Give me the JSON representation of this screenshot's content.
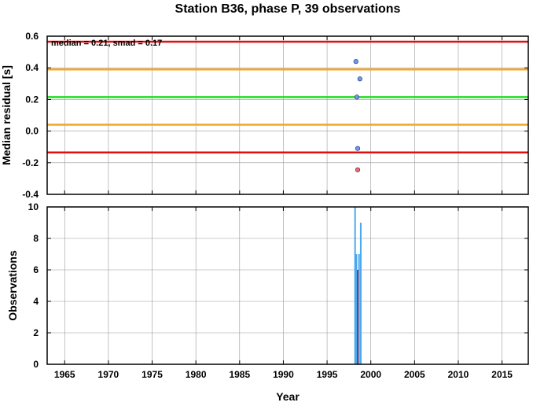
{
  "chart_data": [
    {
      "type": "scatter",
      "title": "Station B36, phase P, 39 observations",
      "annotation": "median = 0.21, smad = 0.17",
      "ylabel": "Median residual [s]",
      "xlim": [
        1963,
        2018
      ],
      "ylim": [
        -0.4,
        0.6
      ],
      "yticks": [
        -0.4,
        -0.2,
        0.0,
        0.2,
        0.4,
        0.6
      ],
      "ytick_labels": [
        "-0.4",
        "-0.2",
        "0.0",
        "0.2",
        "0.4",
        "0.6"
      ],
      "grid": true,
      "reference_lines": [
        {
          "value": 0.565,
          "color": "#e01010"
        },
        {
          "value": 0.39,
          "color": "#f5a623"
        },
        {
          "value": 0.215,
          "color": "#22dd22"
        },
        {
          "value": 0.04,
          "color": "#f5a623"
        },
        {
          "value": -0.135,
          "color": "#e01010"
        }
      ],
      "points": [
        {
          "x": 1998.3,
          "y": 0.44,
          "color": "#6a9be8"
        },
        {
          "x": 1998.75,
          "y": 0.33,
          "color": "#6a9be8"
        },
        {
          "x": 1998.4,
          "y": 0.215,
          "color": "#6a9be8"
        },
        {
          "x": 1998.5,
          "y": -0.11,
          "color": "#6a9be8"
        },
        {
          "x": 1998.5,
          "y": -0.245,
          "color": "#ef6b6b"
        }
      ]
    },
    {
      "type": "bar",
      "xlabel": "Year",
      "ylabel": "Observations",
      "xlim": [
        1963,
        2018
      ],
      "ylim": [
        0,
        10
      ],
      "xticks": [
        1965,
        1970,
        1975,
        1980,
        1985,
        1990,
        1995,
        2000,
        2005,
        2010,
        2015
      ],
      "xtick_labels": [
        "1965",
        "1970",
        "1975",
        "1980",
        "1985",
        "1990",
        "1995",
        "2000",
        "2005",
        "2010",
        "2015"
      ],
      "yticks": [
        0,
        2,
        4,
        6,
        8,
        10
      ],
      "ytick_labels": [
        "0",
        "2",
        "4",
        "6",
        "8",
        "10"
      ],
      "grid": true,
      "bars": [
        {
          "x": 1998.2,
          "value": 10,
          "color": "#4aa8f0"
        },
        {
          "x": 1998.35,
          "value": 7,
          "color": "#4aa8f0"
        },
        {
          "x": 1998.5,
          "value": 6,
          "color": "#e01010"
        },
        {
          "x": 1998.65,
          "value": 7,
          "color": "#4aa8f0"
        },
        {
          "x": 1998.85,
          "value": 9,
          "color": "#4aa8f0"
        }
      ]
    }
  ]
}
